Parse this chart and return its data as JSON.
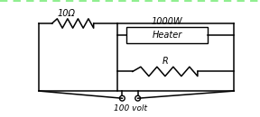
{
  "border_color": "#90EE90",
  "background_color": "#ffffff",
  "wire_color": "#000000",
  "text_color": "#000000",
  "label_10ohm": "10Ω",
  "label_1000w": "1000W",
  "label_heater": "Heater",
  "label_R": "R",
  "label_volt": "100 volt",
  "fig_width": 2.88,
  "fig_height": 1.3,
  "dpi": 100
}
